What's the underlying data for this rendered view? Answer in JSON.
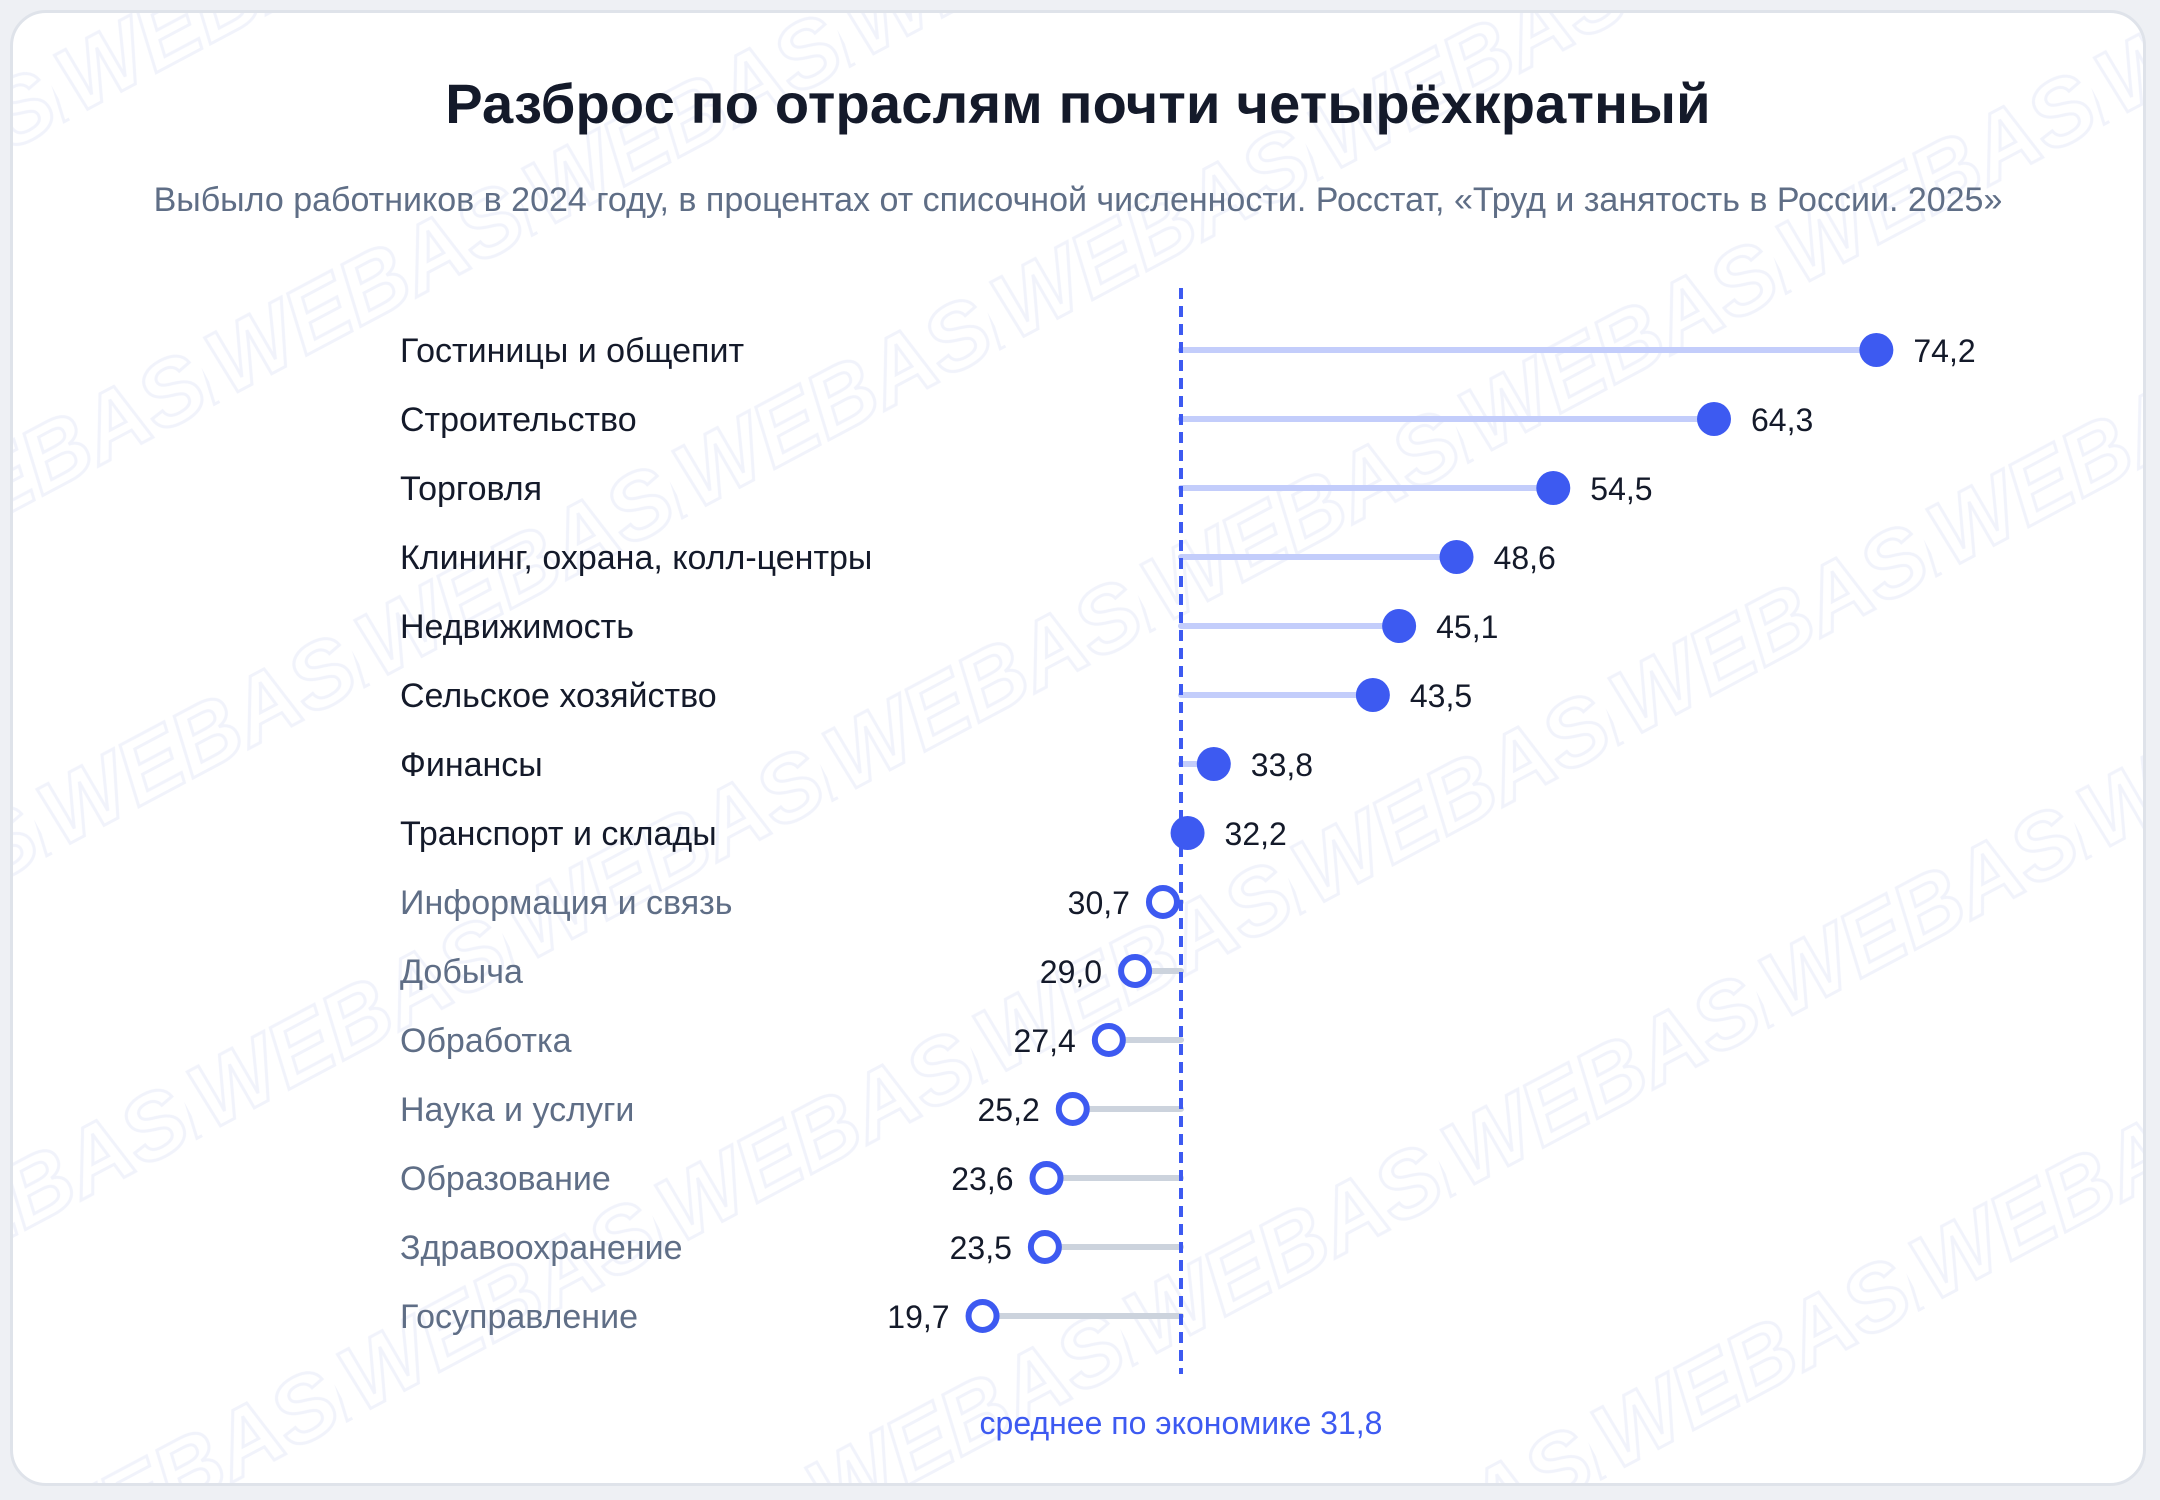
{
  "chart_data": {
    "type": "lollipop",
    "title": "Разброс по отраслям почти четырёхкратный",
    "subtitle": "Выбыло работников в 2024 году, в процентах от списочной численности. Росстат, «Труд и занятость в России. 2025»",
    "baseline": {
      "value": 31.8,
      "label": "среднее по экономике 31,8"
    },
    "categories": [
      "Гостиницы и общепит",
      "Строительство",
      "Торговля",
      "Клининг, охрана, колл-центры",
      "Недвижимость",
      "Сельское хозяйство",
      "Финансы",
      "Транспорт и склады",
      "Информация и связь",
      "Добыча",
      "Обработка",
      "Наука и услуги",
      "Образование",
      "Здравоохранение",
      "Госуправление"
    ],
    "values": [
      74.2,
      64.3,
      54.5,
      48.6,
      45.1,
      43.5,
      33.8,
      32.2,
      30.7,
      29.0,
      27.4,
      25.2,
      23.6,
      23.5,
      19.7
    ],
    "value_labels": [
      "74,2",
      "64,3",
      "54,5",
      "48,6",
      "45,1",
      "43,5",
      "33,8",
      "32,2",
      "30,7",
      "29,0",
      "27,4",
      "25,2",
      "23,6",
      "23,5",
      "19,7"
    ],
    "colors": {
      "above_marker": "#3d5af1",
      "above_stem": "#c3cdfb",
      "below_marker_stroke": "#3d5af1",
      "below_stem": "#ccd3dd",
      "above_label": "#141a2a",
      "below_label": "#5f6e86",
      "baseline": "#3d5af1",
      "watermark": "#f1f3fb"
    },
    "watermark_text": "WEBASK"
  }
}
